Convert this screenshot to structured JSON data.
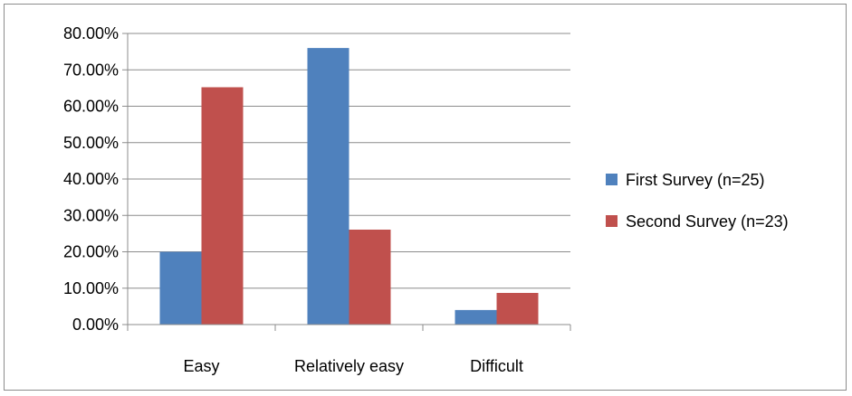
{
  "chart_data": {
    "type": "bar",
    "title": "",
    "xlabel": "",
    "ylabel": "",
    "categories": [
      "Easy",
      "Relatively easy",
      "Difficult"
    ],
    "series": [
      {
        "name": "First Survey (n=25)",
        "values": [
          20.0,
          76.0,
          4.0
        ],
        "color": "#4f81bd"
      },
      {
        "name": "Second Survey (n=23)",
        "values": [
          65.22,
          26.09,
          8.7
        ],
        "color": "#c0504d"
      }
    ],
    "ylim": [
      0,
      80
    ],
    "yticks": [
      "0.00%",
      "10.00%",
      "20.00%",
      "30.00%",
      "40.00%",
      "50.00%",
      "60.00%",
      "70.00%",
      "80.00%"
    ],
    "grid": true,
    "legend_position": "right"
  }
}
